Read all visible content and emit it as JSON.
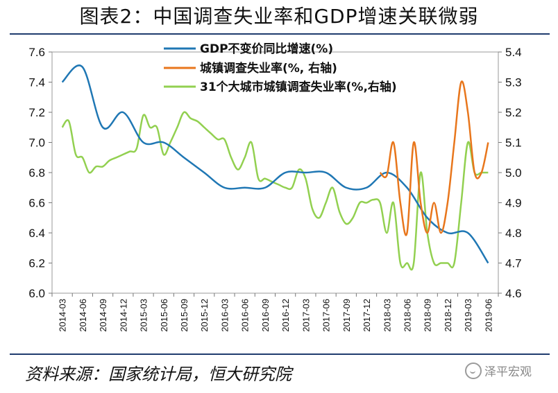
{
  "title": "图表2：中国调查失业率和GDP增速关联微弱",
  "source": "资料来源：国家统计局，恒大研究院",
  "watermark": "泽平宏观",
  "chart_data": {
    "type": "line",
    "x_labels": [
      "2014-03",
      "2014-06",
      "2014-09",
      "2014-12",
      "2015-03",
      "2015-06",
      "2015-09",
      "2015-12",
      "2016-03",
      "2016-06",
      "2016-09",
      "2016-12",
      "2017-03",
      "2017-06",
      "2017-09",
      "2017-12",
      "2018-03",
      "2018-06",
      "2018-09",
      "2018-12",
      "2019-03",
      "2019-06"
    ],
    "ylim_left": [
      6.0,
      7.6
    ],
    "ylim_right": [
      4.6,
      5.4
    ],
    "left_ticks": [
      "6.0",
      "6.2",
      "6.4",
      "6.6",
      "6.8",
      "7.0",
      "7.2",
      "7.4",
      "7.6"
    ],
    "right_ticks": [
      "4.6",
      "4.7",
      "4.8",
      "4.9",
      "5.0",
      "5.1",
      "5.2",
      "5.3",
      "5.4"
    ],
    "legend_position": "top",
    "grid": false,
    "series": [
      {
        "name": "GDP不变价同比增速(%)",
        "axis": "left",
        "color": "#1f77b4",
        "points": [
          [
            0,
            7.4
          ],
          [
            1,
            7.5
          ],
          [
            2,
            7.1
          ],
          [
            3,
            7.2
          ],
          [
            4,
            7.0
          ],
          [
            5,
            7.0
          ],
          [
            6,
            6.9
          ],
          [
            7,
            6.8
          ],
          [
            8,
            6.7
          ],
          [
            9,
            6.7
          ],
          [
            10,
            6.7
          ],
          [
            11,
            6.8
          ],
          [
            12,
            6.8
          ],
          [
            13,
            6.8
          ],
          [
            14,
            6.7
          ],
          [
            15,
            6.7
          ],
          [
            16,
            6.8
          ],
          [
            17,
            6.7
          ],
          [
            18,
            6.5
          ],
          [
            19,
            6.4
          ],
          [
            20,
            6.4
          ],
          [
            21,
            6.2
          ]
        ]
      },
      {
        "name": "城镇调查失业率(%, 右轴)",
        "axis": "right",
        "color": "#e8761c",
        "points": [
          [
            15.67,
            5.0
          ],
          [
            16.0,
            4.99
          ],
          [
            16.33,
            5.1
          ],
          [
            16.67,
            4.9
          ],
          [
            17.0,
            4.8
          ],
          [
            17.33,
            5.1
          ],
          [
            17.67,
            4.9
          ],
          [
            18.0,
            4.8
          ],
          [
            18.33,
            4.9
          ],
          [
            18.67,
            4.8
          ],
          [
            19.0,
            4.9
          ],
          [
            19.33,
            5.1
          ],
          [
            19.67,
            5.3
          ],
          [
            20.0,
            5.2
          ],
          [
            20.33,
            5.0
          ],
          [
            20.67,
            5.0
          ],
          [
            21.0,
            5.1
          ]
        ]
      },
      {
        "name": "31个大城市城镇调查失业率(%,右轴)",
        "axis": "right",
        "color": "#92d050",
        "points": [
          [
            0,
            5.15
          ],
          [
            0.33,
            5.17
          ],
          [
            0.67,
            5.06
          ],
          [
            1.0,
            5.05
          ],
          [
            1.33,
            5.0
          ],
          [
            1.67,
            5.02
          ],
          [
            2.0,
            5.02
          ],
          [
            2.33,
            5.04
          ],
          [
            2.67,
            5.05
          ],
          [
            3.0,
            5.06
          ],
          [
            3.33,
            5.07
          ],
          [
            3.67,
            5.08
          ],
          [
            4.0,
            5.19
          ],
          [
            4.33,
            5.15
          ],
          [
            4.67,
            5.15
          ],
          [
            5.0,
            5.06
          ],
          [
            5.33,
            5.1
          ],
          [
            5.67,
            5.15
          ],
          [
            6.0,
            5.2
          ],
          [
            6.33,
            5.18
          ],
          [
            6.67,
            5.17
          ],
          [
            7.0,
            5.15
          ],
          [
            7.33,
            5.13
          ],
          [
            7.67,
            5.11
          ],
          [
            8.0,
            5.11
          ],
          [
            8.33,
            5.05
          ],
          [
            8.67,
            5.01
          ],
          [
            9.0,
            5.05
          ],
          [
            9.33,
            5.1
          ],
          [
            9.67,
            4.98
          ],
          [
            10.0,
            4.98
          ],
          [
            10.33,
            4.97
          ],
          [
            10.67,
            4.96
          ],
          [
            11.0,
            4.95
          ],
          [
            11.33,
            4.95
          ],
          [
            11.67,
            5.01
          ],
          [
            12.0,
            4.98
          ],
          [
            12.33,
            4.88
          ],
          [
            12.67,
            4.85
          ],
          [
            13.0,
            4.9
          ],
          [
            13.33,
            4.95
          ],
          [
            13.67,
            4.87
          ],
          [
            14.0,
            4.83
          ],
          [
            14.33,
            4.85
          ],
          [
            14.67,
            4.9
          ],
          [
            15.0,
            4.9
          ],
          [
            15.33,
            4.91
          ],
          [
            15.67,
            4.9
          ],
          [
            16.0,
            4.8
          ],
          [
            16.33,
            4.9
          ],
          [
            16.67,
            4.7
          ],
          [
            17.0,
            4.7
          ],
          [
            17.33,
            4.7
          ],
          [
            17.67,
            5.0
          ],
          [
            18.0,
            4.8
          ],
          [
            18.33,
            4.7
          ],
          [
            18.67,
            4.7
          ],
          [
            19.0,
            4.7
          ],
          [
            19.33,
            4.7
          ],
          [
            19.67,
            4.9
          ],
          [
            20.0,
            5.1
          ],
          [
            20.33,
            5.0
          ],
          [
            20.67,
            5.0
          ],
          [
            21.0,
            5.0
          ]
        ]
      }
    ]
  }
}
